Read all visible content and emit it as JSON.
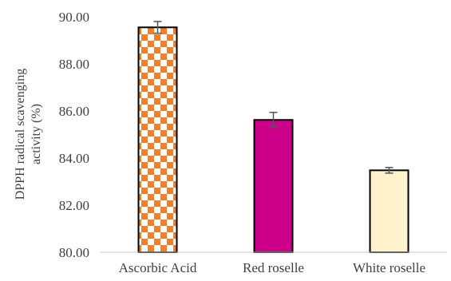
{
  "chart_data": {
    "type": "bar",
    "title": "",
    "xlabel": "",
    "ylabel_lines": [
      "DPPH radical scavenging",
      "activity (%)"
    ],
    "ylim": [
      80,
      90
    ],
    "yticks": [
      "80.00",
      "82.00",
      "84.00",
      "86.00",
      "88.00",
      "90.00"
    ],
    "categories": [
      "Ascorbic Acid",
      "Red roselle",
      "White roselle"
    ],
    "values": [
      89.55,
      85.62,
      83.48
    ],
    "errors": [
      0.25,
      0.32,
      0.12
    ],
    "bar_fills": [
      "checker-orange",
      "#cc0088",
      "#fff2cc"
    ],
    "checker_colors": [
      "#f08030",
      "#ffffff"
    ],
    "grid": false,
    "legend": "none"
  }
}
